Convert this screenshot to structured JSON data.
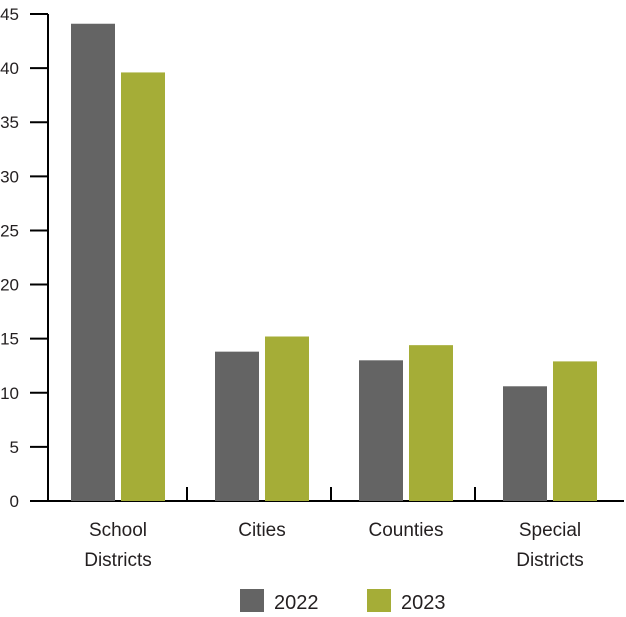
{
  "chart_data": {
    "type": "bar",
    "categories": [
      [
        "School",
        "Districts"
      ],
      [
        "Cities"
      ],
      [
        "Counties"
      ],
      [
        "Special",
        "Districts"
      ]
    ],
    "series": [
      {
        "name": "2022",
        "color": "#646464",
        "values": [
          44.1,
          13.8,
          13.0,
          10.6
        ]
      },
      {
        "name": "2023",
        "color": "#a5ad37",
        "values": [
          39.6,
          15.2,
          14.4,
          12.9
        ]
      }
    ],
    "yticks": [
      "0",
      "5",
      "10",
      "15",
      "20",
      "25",
      "30",
      "35",
      "40",
      "45"
    ],
    "ylim": [
      0,
      45
    ],
    "grid": false,
    "legend_position": "bottom-center",
    "axis_color": "#000000"
  }
}
